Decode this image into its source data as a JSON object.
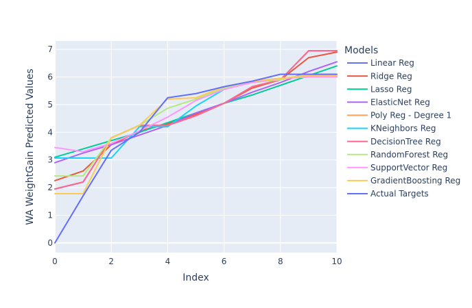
{
  "chart_data": {
    "type": "line",
    "xlabel": "Index",
    "ylabel": "WA WeightGain Predicted Values",
    "xlim": [
      0,
      10
    ],
    "ylim": [
      -0.35,
      7.3
    ],
    "x_ticks": [
      0,
      2,
      4,
      6,
      8,
      10
    ],
    "y_ticks": [
      0,
      1,
      2,
      3,
      4,
      5,
      6,
      7
    ],
    "plot_background": "#e5ecf6",
    "grid": true,
    "legend": {
      "title": "Models",
      "position": "right"
    },
    "x": [
      0,
      1,
      2,
      3,
      4,
      5,
      6,
      7,
      8,
      9,
      10
    ],
    "series": [
      {
        "name": "Linear Reg",
        "color": "#636efa",
        "values": [
          1.95,
          2.2,
          3.8,
          4.25,
          4.25,
          4.6,
          5.05,
          5.65,
          5.9,
          6.95,
          6.95
        ]
      },
      {
        "name": "Ridge Reg",
        "color": "#ef553b",
        "values": [
          2.25,
          2.6,
          3.55,
          4.05,
          4.3,
          4.65,
          5.05,
          5.6,
          5.9,
          6.7,
          6.9
        ]
      },
      {
        "name": "Lasso Reg",
        "color": "#00cc96",
        "values": [
          3.1,
          3.4,
          3.7,
          4.0,
          4.35,
          4.7,
          5.05,
          5.35,
          5.7,
          6.05,
          6.4
        ]
      },
      {
        "name": "ElasticNet Reg",
        "color": "#ab63fa",
        "values": [
          2.9,
          3.25,
          3.55,
          3.9,
          4.25,
          4.7,
          5.05,
          5.45,
          5.8,
          6.2,
          6.55
        ]
      },
      {
        "name": "Poly Reg - Degree 1",
        "color": "#ffa15a",
        "values": [
          1.95,
          2.2,
          3.8,
          4.25,
          4.25,
          4.6,
          5.05,
          5.65,
          5.9,
          6.95,
          6.95
        ]
      },
      {
        "name": "KNeighbors Reg",
        "color": "#19d3f3",
        "values": [
          3.07,
          3.07,
          3.07,
          4.2,
          4.2,
          4.95,
          5.55,
          5.85,
          5.95,
          6.05,
          6.05
        ]
      },
      {
        "name": "DecisionTree Reg",
        "color": "#ff6692",
        "values": [
          1.95,
          2.2,
          3.8,
          4.25,
          4.25,
          4.6,
          5.05,
          5.65,
          5.9,
          6.95,
          6.95
        ]
      },
      {
        "name": "RandomForest Reg",
        "color": "#b6e880",
        "values": [
          2.42,
          2.42,
          3.8,
          4.25,
          4.87,
          5.2,
          5.6,
          5.8,
          5.9,
          6.1,
          6.1
        ]
      },
      {
        "name": "SupportVector Reg",
        "color": "#ff97ff",
        "values": [
          3.45,
          3.3,
          3.6,
          4.05,
          4.55,
          5.15,
          5.55,
          5.8,
          5.95,
          6.0,
          6.0
        ]
      },
      {
        "name": "GradientBoosting Reg",
        "color": "#fecb52",
        "values": [
          1.78,
          1.78,
          3.8,
          4.25,
          5.2,
          5.25,
          5.65,
          5.85,
          5.95,
          6.05,
          6.05
        ]
      },
      {
        "name": "Actual Targets",
        "color": "#636efa",
        "values": [
          0.0,
          1.7,
          3.35,
          4.0,
          5.25,
          5.4,
          5.65,
          5.85,
          6.1,
          6.1,
          6.1
        ]
      }
    ]
  }
}
